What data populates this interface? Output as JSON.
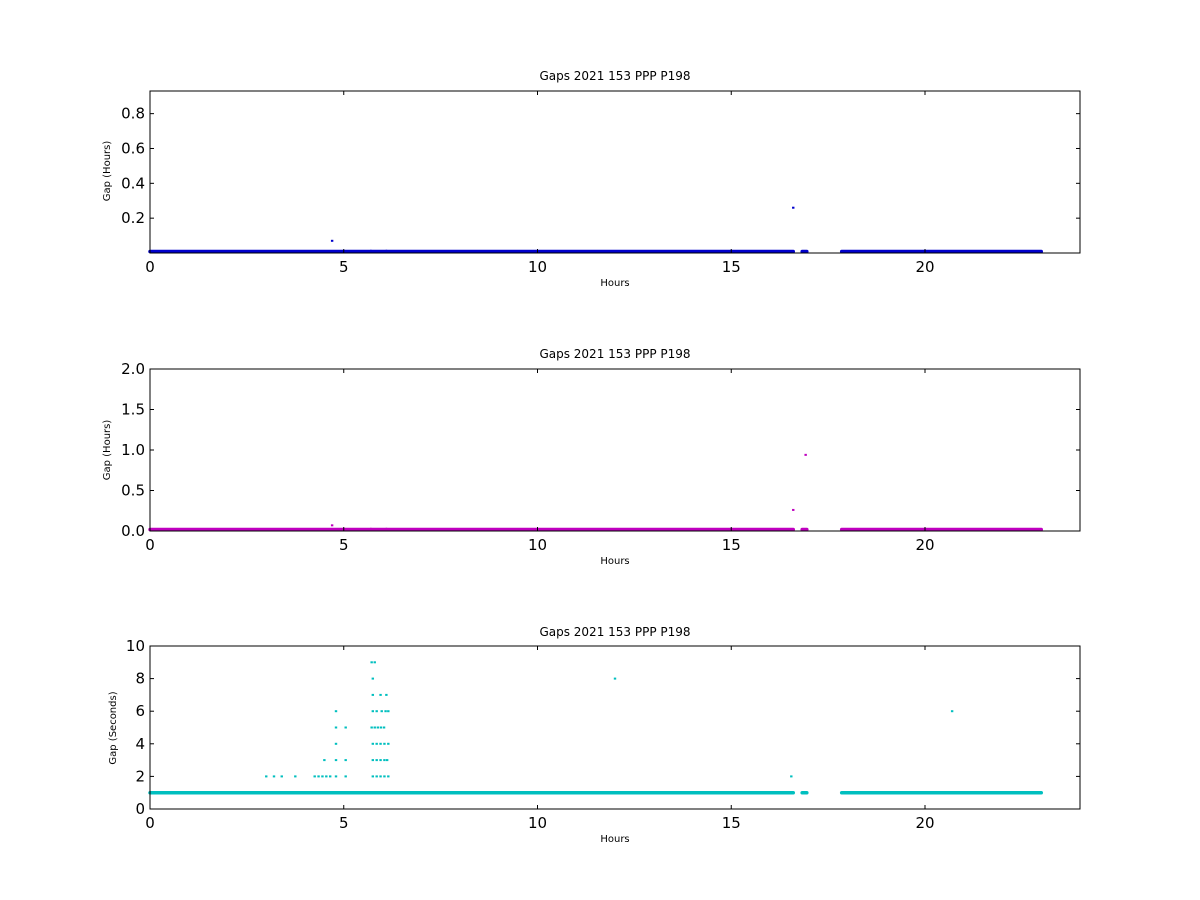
{
  "chart_data": [
    {
      "type": "scatter",
      "title": "Gaps 2021 153 PPP  P198",
      "xlabel": "Hours",
      "ylabel": "Gap (Hours)",
      "xlim": [
        0,
        24
      ],
      "ylim": [
        0,
        0.93
      ],
      "xticks": [
        0,
        5,
        10,
        15,
        20
      ],
      "yticks": [
        0.2,
        0.4,
        0.6,
        0.8
      ],
      "color": "#0000cc",
      "grid": false,
      "baseline_segments": [
        {
          "x0": 0,
          "x1": 5.7,
          "y": 0.0003
        },
        {
          "x0": 5.7,
          "x1": 6.1,
          "y": 0.0003
        },
        {
          "x0": 6.1,
          "x1": 16.6,
          "y": 0.0003
        },
        {
          "x0": 16.83,
          "x1": 16.95,
          "y": 0.0003
        },
        {
          "x0": 17.85,
          "x1": 23.0,
          "y": 0.0003
        }
      ],
      "points": [
        {
          "x": 4.7,
          "y": 0.07
        },
        {
          "x": 16.6,
          "y": 0.26
        }
      ]
    },
    {
      "type": "scatter",
      "title": "Gaps 2021 153 PPP  P198",
      "xlabel": "Hours",
      "ylabel": "Gap (Hours)",
      "xlim": [
        0,
        24
      ],
      "ylim": [
        0,
        2.0
      ],
      "xticks": [
        0,
        5,
        10,
        15,
        20
      ],
      "yticks": [
        0.0,
        0.5,
        1.0,
        1.5,
        2.0
      ],
      "color": "#bf00bf",
      "grid": false,
      "baseline_segments": [
        {
          "x0": 0,
          "x1": 5.7,
          "y": 0.0003
        },
        {
          "x0": 5.7,
          "x1": 6.1,
          "y": 0.0003
        },
        {
          "x0": 6.1,
          "x1": 16.6,
          "y": 0.0003
        },
        {
          "x0": 16.83,
          "x1": 16.95,
          "y": 0.0003
        },
        {
          "x0": 17.85,
          "x1": 23.0,
          "y": 0.0003
        }
      ],
      "points": [
        {
          "x": 4.7,
          "y": 0.07
        },
        {
          "x": 16.6,
          "y": 0.26
        },
        {
          "x": 16.92,
          "y": 0.94
        }
      ]
    },
    {
      "type": "scatter",
      "title": "Gaps 2021 153 PPP  P198",
      "xlabel": "Hours",
      "ylabel": "Gap (Seconds)",
      "xlim": [
        0,
        24
      ],
      "ylim": [
        0,
        10
      ],
      "xticks": [
        0,
        5,
        10,
        15,
        20
      ],
      "yticks": [
        0,
        2,
        4,
        6,
        8,
        10
      ],
      "color": "#00bfbf",
      "grid": false,
      "baseline_segments": [
        {
          "x0": 0,
          "x1": 16.6,
          "y": 1
        },
        {
          "x0": 16.83,
          "x1": 16.95,
          "y": 1
        },
        {
          "x0": 17.85,
          "x1": 23.0,
          "y": 1
        }
      ],
      "points": [
        {
          "x": 3.0,
          "y": 2
        },
        {
          "x": 3.2,
          "y": 2
        },
        {
          "x": 3.4,
          "y": 2
        },
        {
          "x": 3.75,
          "y": 2
        },
        {
          "x": 4.25,
          "y": 2
        },
        {
          "x": 4.35,
          "y": 2
        },
        {
          "x": 4.45,
          "y": 2
        },
        {
          "x": 4.55,
          "y": 2
        },
        {
          "x": 4.65,
          "y": 2
        },
        {
          "x": 4.8,
          "y": 2
        },
        {
          "x": 5.05,
          "y": 2
        },
        {
          "x": 4.5,
          "y": 3
        },
        {
          "x": 4.8,
          "y": 3
        },
        {
          "x": 5.05,
          "y": 3
        },
        {
          "x": 4.8,
          "y": 4
        },
        {
          "x": 4.8,
          "y": 5
        },
        {
          "x": 5.05,
          "y": 5
        },
        {
          "x": 4.8,
          "y": 6
        },
        {
          "x": 5.75,
          "y": 2
        },
        {
          "x": 5.85,
          "y": 2
        },
        {
          "x": 5.95,
          "y": 2
        },
        {
          "x": 6.05,
          "y": 2
        },
        {
          "x": 6.15,
          "y": 2
        },
        {
          "x": 5.75,
          "y": 3
        },
        {
          "x": 5.85,
          "y": 3
        },
        {
          "x": 5.95,
          "y": 3
        },
        {
          "x": 6.05,
          "y": 3
        },
        {
          "x": 6.12,
          "y": 3
        },
        {
          "x": 5.75,
          "y": 4
        },
        {
          "x": 5.85,
          "y": 4
        },
        {
          "x": 5.95,
          "y": 4
        },
        {
          "x": 6.05,
          "y": 4
        },
        {
          "x": 6.15,
          "y": 4
        },
        {
          "x": 5.72,
          "y": 5
        },
        {
          "x": 5.8,
          "y": 5
        },
        {
          "x": 5.88,
          "y": 5
        },
        {
          "x": 5.96,
          "y": 5
        },
        {
          "x": 6.04,
          "y": 5
        },
        {
          "x": 5.75,
          "y": 6
        },
        {
          "x": 5.85,
          "y": 6
        },
        {
          "x": 5.98,
          "y": 6
        },
        {
          "x": 6.08,
          "y": 6
        },
        {
          "x": 6.15,
          "y": 6
        },
        {
          "x": 5.75,
          "y": 7
        },
        {
          "x": 5.95,
          "y": 7
        },
        {
          "x": 6.1,
          "y": 7
        },
        {
          "x": 5.75,
          "y": 8
        },
        {
          "x": 5.72,
          "y": 9
        },
        {
          "x": 5.8,
          "y": 9
        },
        {
          "x": 12.0,
          "y": 8
        },
        {
          "x": 16.55,
          "y": 2
        },
        {
          "x": 20.7,
          "y": 6
        }
      ]
    }
  ]
}
